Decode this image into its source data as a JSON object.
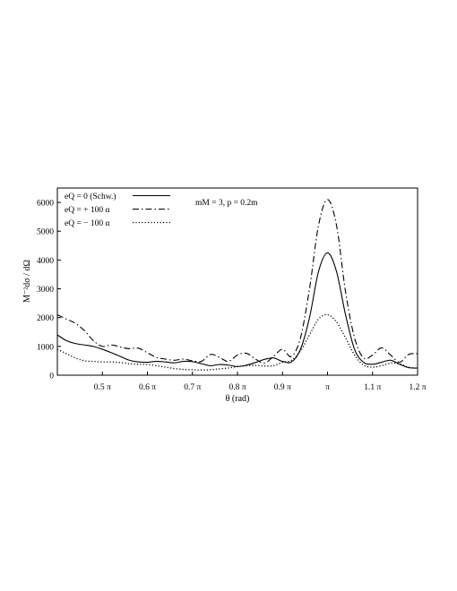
{
  "chart_data": {
    "type": "line",
    "xlabel": "θ (rad)",
    "ylabel": "M⁻²dσ / dΩ",
    "annotation": "mM = 3,   p = 0.2m",
    "xlim": [
      0.4,
      1.2
    ],
    "ylim": [
      0,
      6500
    ],
    "x_ticks": [
      0.5,
      0.6,
      0.7,
      0.8,
      0.9,
      1.0,
      1.1,
      1.2
    ],
    "x_tick_labels": [
      "0.5 π",
      "0.6 π",
      "0.7 π",
      "0.8 π",
      "0.9 π",
      "π",
      "1.1 π",
      "1.2 π"
    ],
    "y_ticks": [
      0,
      1000,
      2000,
      3000,
      4000,
      5000,
      6000
    ],
    "y_tick_labels": [
      "0",
      "1000",
      "2000",
      "3000",
      "4000",
      "5000",
      "6000"
    ],
    "grid": false,
    "legend_position": "top-left",
    "x_unit": "π rad",
    "series": [
      {
        "name": "eQ = 0 (Schw.)",
        "style": "solid",
        "color": "#000000",
        "x": [
          0.4,
          0.42,
          0.44,
          0.46,
          0.48,
          0.5,
          0.52,
          0.54,
          0.56,
          0.58,
          0.6,
          0.62,
          0.64,
          0.66,
          0.68,
          0.7,
          0.72,
          0.74,
          0.76,
          0.78,
          0.8,
          0.82,
          0.84,
          0.86,
          0.88,
          0.9,
          0.92,
          0.94,
          0.96,
          0.98,
          1.0,
          1.02,
          1.04,
          1.06,
          1.08,
          1.1,
          1.12,
          1.14,
          1.16,
          1.18,
          1.2
        ],
        "y": [
          1400,
          1200,
          1100,
          1050,
          1000,
          900,
          780,
          650,
          520,
          460,
          450,
          480,
          460,
          430,
          480,
          470,
          400,
          330,
          370,
          350,
          300,
          350,
          440,
          550,
          600,
          480,
          460,
          900,
          2000,
          3600,
          4250,
          3600,
          2100,
          900,
          450,
          380,
          450,
          520,
          380,
          260,
          250
        ]
      },
      {
        "name": "eQ = + 100 α",
        "style": "dashdot",
        "color": "#000000",
        "x": [
          0.4,
          0.42,
          0.44,
          0.46,
          0.48,
          0.5,
          0.52,
          0.54,
          0.56,
          0.58,
          0.6,
          0.62,
          0.64,
          0.66,
          0.68,
          0.7,
          0.72,
          0.74,
          0.76,
          0.78,
          0.8,
          0.82,
          0.84,
          0.86,
          0.88,
          0.9,
          0.92,
          0.94,
          0.96,
          0.98,
          1.0,
          1.02,
          1.04,
          1.06,
          1.08,
          1.1,
          1.12,
          1.14,
          1.16,
          1.18,
          1.2
        ],
        "y": [
          2100,
          1950,
          1800,
          1550,
          1200,
          1000,
          1050,
          980,
          920,
          940,
          780,
          620,
          560,
          520,
          560,
          500,
          480,
          720,
          620,
          480,
          700,
          760,
          560,
          420,
          650,
          900,
          650,
          1300,
          3000,
          5200,
          6100,
          5200,
          2900,
          1300,
          600,
          700,
          950,
          700,
          450,
          720,
          750
        ]
      },
      {
        "name": "eQ = − 100 α",
        "style": "dotted",
        "color": "#000000",
        "x": [
          0.4,
          0.42,
          0.44,
          0.46,
          0.48,
          0.5,
          0.52,
          0.54,
          0.56,
          0.58,
          0.6,
          0.62,
          0.64,
          0.66,
          0.68,
          0.7,
          0.72,
          0.74,
          0.76,
          0.78,
          0.8,
          0.82,
          0.84,
          0.86,
          0.88,
          0.9,
          0.92,
          0.94,
          0.96,
          0.98,
          1.0,
          1.02,
          1.04,
          1.06,
          1.08,
          1.1,
          1.12,
          1.14,
          1.16,
          1.18,
          1.2
        ],
        "y": [
          900,
          750,
          600,
          500,
          480,
          460,
          460,
          440,
          400,
          380,
          370,
          330,
          280,
          230,
          200,
          190,
          180,
          190,
          220,
          250,
          300,
          330,
          340,
          320,
          330,
          450,
          520,
          850,
          1400,
          1950,
          2100,
          1850,
          1300,
          700,
          350,
          280,
          330,
          420,
          390,
          280,
          240
        ]
      }
    ]
  }
}
